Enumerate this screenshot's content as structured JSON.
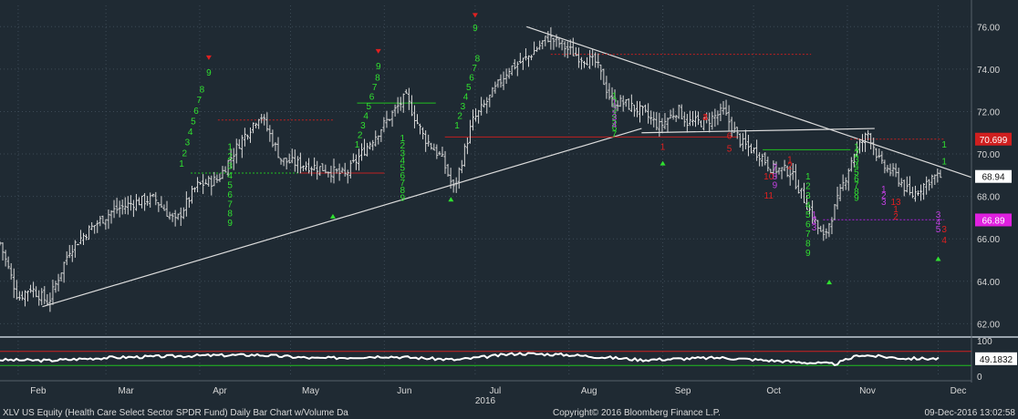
{
  "chart_data": [
    {
      "type": "bar",
      "subtype": "ohlc",
      "series": [
        {
          "values_approx": "daily bars, Feb–Dec 2016"
        }
      ],
      "y_ticks": [
        "76.00",
        "74.00",
        "72.00",
        "70.00",
        "68.00",
        "66.00",
        "64.00",
        "62.00"
      ],
      "ylim": [
        61.5,
        77.0
      ],
      "x_ticks": [
        "Feb",
        "Mar",
        "Apr",
        "May",
        "Jun",
        "Jul",
        "Aug",
        "Sep",
        "Oct",
        "Nov",
        "Dec"
      ],
      "x_year_label": "2016",
      "price_badges": [
        {
          "label": "70.699",
          "value": 70.699,
          "color": "#d01f1f"
        },
        {
          "label": "68.94",
          "value": 68.94,
          "color": "#ffffff"
        },
        {
          "label": "66.89",
          "value": 66.89,
          "color": "#e020e0"
        }
      ],
      "closes_approx": [
        [
          "2016-01-26",
          65.8
        ],
        [
          "2016-02-01",
          63.2
        ],
        [
          "2016-02-05",
          63.7
        ],
        [
          "2016-02-11",
          63.0
        ],
        [
          "2016-02-18",
          65.5
        ],
        [
          "2016-02-25",
          66.5
        ],
        [
          "2016-03-03",
          67.3
        ],
        [
          "2016-03-10",
          67.7
        ],
        [
          "2016-03-17",
          67.9
        ],
        [
          "2016-03-24",
          66.8
        ],
        [
          "2016-03-31",
          68.5
        ],
        [
          "2016-04-07",
          68.8
        ],
        [
          "2016-04-14",
          70.5
        ],
        [
          "2016-04-21",
          71.9
        ],
        [
          "2016-04-28",
          69.7
        ],
        [
          "2016-05-05",
          69.5
        ],
        [
          "2016-05-12",
          69.3
        ],
        [
          "2016-05-19",
          69.0
        ],
        [
          "2016-05-26",
          70.3
        ],
        [
          "2016-06-02",
          71.6
        ],
        [
          "2016-06-08",
          72.7
        ],
        [
          "2016-06-14",
          70.8
        ],
        [
          "2016-06-20",
          69.8
        ],
        [
          "2016-06-24",
          68.3
        ],
        [
          "2016-06-30",
          71.5
        ],
        [
          "2016-07-06",
          72.7
        ],
        [
          "2016-07-12",
          74.0
        ],
        [
          "2016-07-18",
          74.5
        ],
        [
          "2016-07-25",
          75.5
        ],
        [
          "2016-07-29",
          75.2
        ],
        [
          "2016-08-04",
          74.6
        ],
        [
          "2016-08-10",
          74.3
        ],
        [
          "2016-08-15",
          72.5
        ],
        [
          "2016-08-19",
          72.4
        ],
        [
          "2016-08-25",
          72.0
        ],
        [
          "2016-08-31",
          71.3
        ],
        [
          "2016-09-06",
          72.1
        ],
        [
          "2016-09-09",
          71.5
        ],
        [
          "2016-09-15",
          71.5
        ],
        [
          "2016-09-21",
          72.0
        ],
        [
          "2016-09-27",
          70.5
        ],
        [
          "2016-10-03",
          70.0
        ],
        [
          "2016-10-07",
          69.3
        ],
        [
          "2016-10-13",
          69.2
        ],
        [
          "2016-10-19",
          67.5
        ],
        [
          "2016-10-24",
          66.0
        ],
        [
          "2016-10-28",
          67.5
        ],
        [
          "2016-11-03",
          70.0
        ],
        [
          "2016-11-08",
          71.0
        ],
        [
          "2016-11-12",
          69.5
        ],
        [
          "2016-11-17",
          69.0
        ],
        [
          "2016-11-22",
          68.0
        ],
        [
          "2016-11-29",
          68.9
        ],
        [
          "2016-12-02",
          68.94
        ]
      ],
      "trendlines": [
        {
          "from": [
            "2016-02-09",
            62.8
          ],
          "to": [
            "2016-08-25",
            71.2
          ],
          "color": "#dddddd"
        },
        {
          "from": [
            "2016-07-18",
            76.0
          ],
          "to": [
            "2016-12-12",
            68.9
          ],
          "color": "#dddddd"
        },
        {
          "from": [
            "2016-08-25",
            71.0
          ],
          "to": [
            "2016-11-10",
            71.2
          ],
          "color": "#dddddd"
        }
      ],
      "support_resistance": [
        {
          "y": 74.7,
          "x0": "2016-07-26",
          "x1": "2016-10-20",
          "color": "#c02020",
          "style": "dashed"
        },
        {
          "y": 71.6,
          "x0": "2016-04-07",
          "x1": "2016-05-15",
          "color": "#c02020",
          "style": "dashed"
        },
        {
          "y": 72.4,
          "x0": "2016-05-23",
          "x1": "2016-06-18",
          "color": "#20c020",
          "style": "solid"
        },
        {
          "y": 70.8,
          "x0": "2016-06-21",
          "x1": "2016-09-26",
          "color": "#c02020",
          "style": "solid"
        },
        {
          "y": 69.1,
          "x0": "2016-03-29",
          "x1": "2016-05-04",
          "color": "#20c020",
          "style": "dashed"
        },
        {
          "y": 69.1,
          "x0": "2016-05-04",
          "x1": "2016-06-01",
          "color": "#c02020",
          "style": "solid"
        },
        {
          "y": 70.2,
          "x0": "2016-10-04",
          "x1": "2016-11-02",
          "color": "#20c020",
          "style": "solid"
        },
        {
          "y": 70.7,
          "x0": "2016-11-02",
          "x1": "2016-12-03",
          "color": "#c02020",
          "style": "dashed"
        },
        {
          "y": 66.9,
          "x0": "2016-10-24",
          "x1": "2016-12-03",
          "color": "#b020e0",
          "style": "dashed"
        }
      ],
      "td_counts": [
        {
          "date": "2016-03-26",
          "values": [
            "1",
            "2",
            "3",
            "4",
            "5",
            "6",
            "7",
            "8"
          ],
          "start": 69.4,
          "step": 0.5,
          "color": "#30e030"
        },
        {
          "date": "2016-04-04",
          "values": [
            "9"
          ],
          "start": 73.7,
          "step": 0,
          "color": "#30e030"
        },
        {
          "date": "2016-05-23",
          "values": [
            "1",
            "2",
            "3",
            "4",
            "5",
            "6",
            "7",
            "8"
          ],
          "start": 70.3,
          "step": 0.45,
          "color": "#30e030"
        },
        {
          "date": "2016-05-30",
          "values": [
            "9"
          ],
          "start": 74.0,
          "step": 0,
          "color": "#30e030"
        },
        {
          "date": "2016-06-25",
          "values": [
            "1",
            "2",
            "3",
            "4",
            "5",
            "6",
            "7",
            "8"
          ],
          "start": 71.2,
          "step": 0.45,
          "color": "#30e030"
        },
        {
          "date": "2016-07-01",
          "values": [
            "9"
          ],
          "start": 75.8,
          "step": 0,
          "color": "#30e030"
        },
        {
          "date": "2016-04-11",
          "values": [
            "1",
            "2",
            "3",
            "4",
            "5",
            "6",
            "7",
            "8",
            "9"
          ],
          "start": 70.2,
          "step": -0.45,
          "color": "#30e030"
        },
        {
          "date": "2016-06-07",
          "values": [
            "1",
            "2",
            "3",
            "4",
            "5",
            "6",
            "7",
            "8",
            "9"
          ],
          "start": 70.6,
          "step": -0.35,
          "color": "#30e030"
        },
        {
          "date": "2016-08-16",
          "values": [
            "1",
            "2",
            "3",
            "4",
            "5",
            "6",
            "7"
          ],
          "start": 72.6,
          "step": -0.3,
          "color": "#30e030"
        },
        {
          "date": "2016-10-19",
          "values": [
            "1",
            "2",
            "3",
            "4",
            "5",
            "6",
            "7",
            "8",
            "9"
          ],
          "start": 68.8,
          "step": -0.45,
          "color": "#30e030"
        },
        {
          "date": "2016-11-04",
          "values": [
            "1",
            "2",
            "3",
            "4",
            "5",
            "6",
            "7",
            "8",
            "9"
          ],
          "start": 70.2,
          "step": -0.3,
          "color": "#30e030"
        },
        {
          "date": "2016-08-16",
          "values": [
            "1",
            "2",
            "3",
            "4"
          ],
          "start": 72.3,
          "step": -0.35,
          "color": "#c040e0"
        },
        {
          "date": "2016-10-08",
          "values": [
            "7",
            "8",
            "9"
          ],
          "start": 69.2,
          "step": -0.4,
          "color": "#c040e0"
        },
        {
          "date": "2016-10-21",
          "values": [
            "1",
            "2",
            "3"
          ],
          "start": 67.0,
          "step": -0.3,
          "color": "#c040e0"
        },
        {
          "date": "2016-11-13",
          "values": [
            "1",
            "2",
            "3"
          ],
          "start": 68.2,
          "step": -0.3,
          "color": "#c040e0"
        },
        {
          "date": "2016-12-01",
          "values": [
            "3",
            "4",
            "5"
          ],
          "start": 67.0,
          "step": -0.35,
          "color": "#c040e0"
        },
        {
          "date": "2016-09-15",
          "values": [
            "3",
            "4"
          ],
          "start": 71.6,
          "step": 0,
          "color": "#e02020"
        },
        {
          "date": "2016-10-13",
          "values": [
            "1",
            "2"
          ],
          "start": 69.6,
          "step": -0.3,
          "color": "#e02020"
        },
        {
          "date": "2016-10-06",
          "values": [
            "10",
            "11"
          ],
          "start": 68.8,
          "step": -0.9,
          "color": "#e02020"
        },
        {
          "date": "2016-11-17",
          "values": [
            "13",
            "1",
            "2"
          ],
          "start": 67.6,
          "step": -0.35,
          "color": "#e02020"
        },
        {
          "date": "2016-09-01",
          "values": [
            "1"
          ],
          "start": 70.2,
          "step": 0,
          "color": "#e02020"
        },
        {
          "date": "2016-09-23",
          "values": [
            "6",
            "5"
          ],
          "start": 70.7,
          "step": -0.6,
          "color": "#e02020"
        },
        {
          "date": "2016-12-03",
          "values": [
            "1",
            "1"
          ],
          "start": 70.3,
          "step": -0.8,
          "color": "#30e030"
        },
        {
          "date": "2016-12-03",
          "values": [
            "3",
            "4"
          ],
          "start": 66.3,
          "step": -0.5,
          "color": "#e02020"
        }
      ],
      "arrows_up": [
        {
          "date": "2016-05-15",
          "y": 67.0
        },
        {
          "date": "2016-06-23",
          "y": 67.8
        },
        {
          "date": "2016-09-01",
          "y": 69.5
        },
        {
          "date": "2016-10-26",
          "y": 63.9
        },
        {
          "date": "2016-12-01",
          "y": 65.0
        }
      ],
      "arrows_down": [
        {
          "date": "2016-04-04",
          "y": 74.6
        },
        {
          "date": "2016-05-30",
          "y": 74.9
        },
        {
          "date": "2016-07-01",
          "y": 76.6
        }
      ]
    },
    {
      "type": "line",
      "name": "RSI",
      "ylim": [
        0,
        100
      ],
      "y_ticks": [
        "100",
        "50",
        "0"
      ],
      "reference_lines": [
        {
          "y": 70,
          "color": "#d01f1f"
        },
        {
          "y": 30,
          "color": "#20c020"
        }
      ],
      "last_value_label": "49.1832",
      "values_approx": [
        [
          "2016-01-26",
          46
        ],
        [
          "2016-02-11",
          44
        ],
        [
          "2016-03-01",
          52
        ],
        [
          "2016-04-01",
          58
        ],
        [
          "2016-04-20",
          60
        ],
        [
          "2016-05-10",
          50
        ],
        [
          "2016-06-01",
          56
        ],
        [
          "2016-06-25",
          46
        ],
        [
          "2016-07-15",
          64
        ],
        [
          "2016-08-01",
          60
        ],
        [
          "2016-08-25",
          46
        ],
        [
          "2016-09-20",
          52
        ],
        [
          "2016-10-15",
          40
        ],
        [
          "2016-10-28",
          34
        ],
        [
          "2016-11-05",
          60
        ],
        [
          "2016-11-20",
          50
        ],
        [
          "2016-12-02",
          49.2
        ]
      ]
    }
  ],
  "footer": {
    "left": "XLV US Equity (Health Care Select Sector SPDR Fund) Daily Bar Chart w/Volume  Da",
    "center": "Copyright© 2016 Bloomberg Finance L.P.",
    "right": "09-Dec-2016 13:02:58"
  },
  "colors": {
    "background": "#1f2a33",
    "bars": "#d8d8d8",
    "grid": "#3d4a56",
    "text": "#d8d8d8",
    "green": "#30e030",
    "red": "#e02020",
    "magenta": "#c040e0"
  }
}
